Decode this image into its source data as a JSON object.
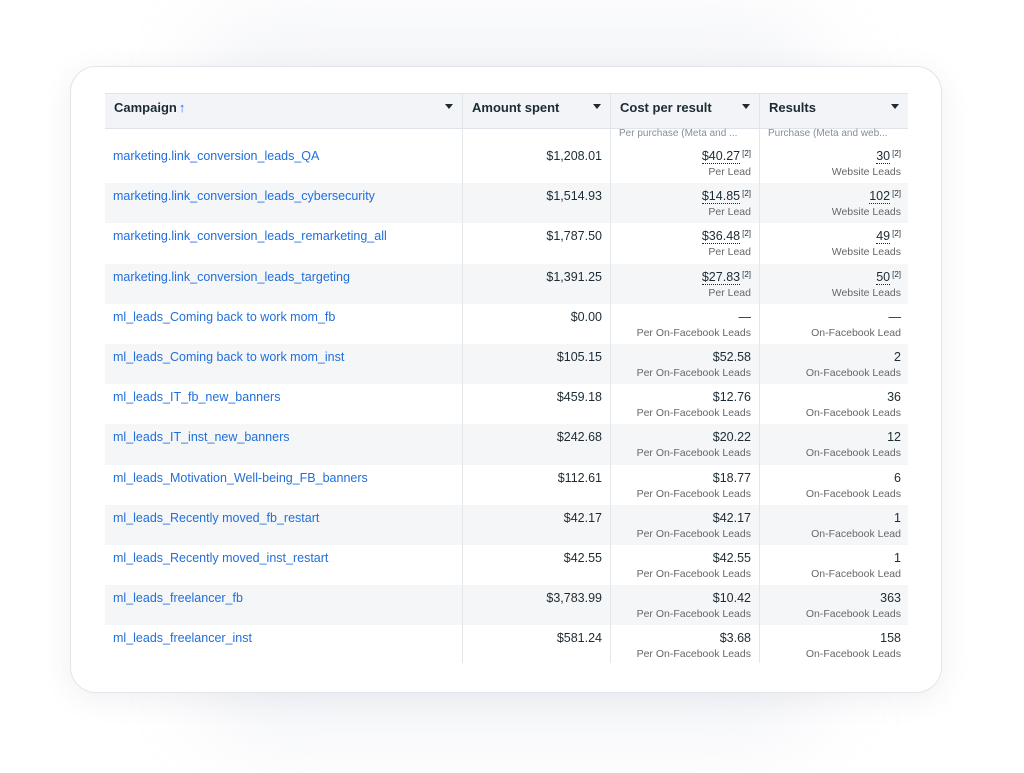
{
  "columns": {
    "campaign": "Campaign",
    "sort_arrow": "↑",
    "amount": "Amount spent",
    "cost": "Cost per result",
    "results": "Results",
    "cost_sub": "Per purchase (Meta and ...",
    "results_sub": "Purchase (Meta and web..."
  },
  "footnote": "[2]",
  "rows": [
    {
      "name": "marketing.link_conversion_leads_QA",
      "amount": "$1,208.01",
      "cost": "$40.27",
      "cost_label": "Per Lead",
      "result": "30",
      "result_label": "Website Leads",
      "footnoted": true
    },
    {
      "name": "marketing.link_conversion_leads_cybersecurity",
      "amount": "$1,514.93",
      "cost": "$14.85",
      "cost_label": "Per Lead",
      "result": "102",
      "result_label": "Website Leads",
      "footnoted": true
    },
    {
      "name": "marketing.link_conversion_leads_remarketing_all",
      "amount": "$1,787.50",
      "cost": "$36.48",
      "cost_label": "Per Lead",
      "result": "49",
      "result_label": "Website Leads",
      "footnoted": true
    },
    {
      "name": "marketing.link_conversion_leads_targeting",
      "amount": "$1,391.25",
      "cost": "$27.83",
      "cost_label": "Per Lead",
      "result": "50",
      "result_label": "Website Leads",
      "footnoted": true
    },
    {
      "name": "ml_leads_Coming back to work mom_fb",
      "amount": "$0.00",
      "cost": "—",
      "cost_label": "Per On-Facebook Leads",
      "result": "—",
      "result_label": "On-Facebook Lead",
      "footnoted": false
    },
    {
      "name": "ml_leads_Coming back to work mom_inst",
      "amount": "$105.15",
      "cost": "$52.58",
      "cost_label": "Per On-Facebook Leads",
      "result": "2",
      "result_label": "On-Facebook Leads",
      "footnoted": false
    },
    {
      "name": "ml_leads_IT_fb_new_banners",
      "amount": "$459.18",
      "cost": "$12.76",
      "cost_label": "Per On-Facebook Leads",
      "result": "36",
      "result_label": "On-Facebook Leads",
      "footnoted": false
    },
    {
      "name": "ml_leads_IT_inst_new_banners",
      "amount": "$242.68",
      "cost": "$20.22",
      "cost_label": "Per On-Facebook Leads",
      "result": "12",
      "result_label": "On-Facebook Leads",
      "footnoted": false
    },
    {
      "name": "ml_leads_Motivation_Well-being_FB_banners",
      "amount": "$112.61",
      "cost": "$18.77",
      "cost_label": "Per On-Facebook Leads",
      "result": "6",
      "result_label": "On-Facebook Leads",
      "footnoted": false
    },
    {
      "name": "ml_leads_Recently moved_fb_restart",
      "amount": "$42.17",
      "cost": "$42.17",
      "cost_label": "Per On-Facebook Leads",
      "result": "1",
      "result_label": "On-Facebook Lead",
      "footnoted": false
    },
    {
      "name": "ml_leads_Recently moved_inst_restart",
      "amount": "$42.55",
      "cost": "$42.55",
      "cost_label": "Per On-Facebook Leads",
      "result": "1",
      "result_label": "On-Facebook Lead",
      "footnoted": false
    },
    {
      "name": "ml_leads_freelancer_fb",
      "amount": "$3,783.99",
      "cost": "$10.42",
      "cost_label": "Per On-Facebook Leads",
      "result": "363",
      "result_label": "On-Facebook Leads",
      "footnoted": false
    },
    {
      "name": "ml_leads_freelancer_inst",
      "amount": "$581.24",
      "cost": "$3.68",
      "cost_label": "Per On-Facebook Leads",
      "result": "158",
      "result_label": "On-Facebook Leads",
      "footnoted": false
    }
  ],
  "colors": {
    "link": "#216fdb",
    "header_bg": "#f2f4f8",
    "alt_row_bg": "#f5f6f8",
    "text": "#1c2b33",
    "muted": "#65676b"
  }
}
